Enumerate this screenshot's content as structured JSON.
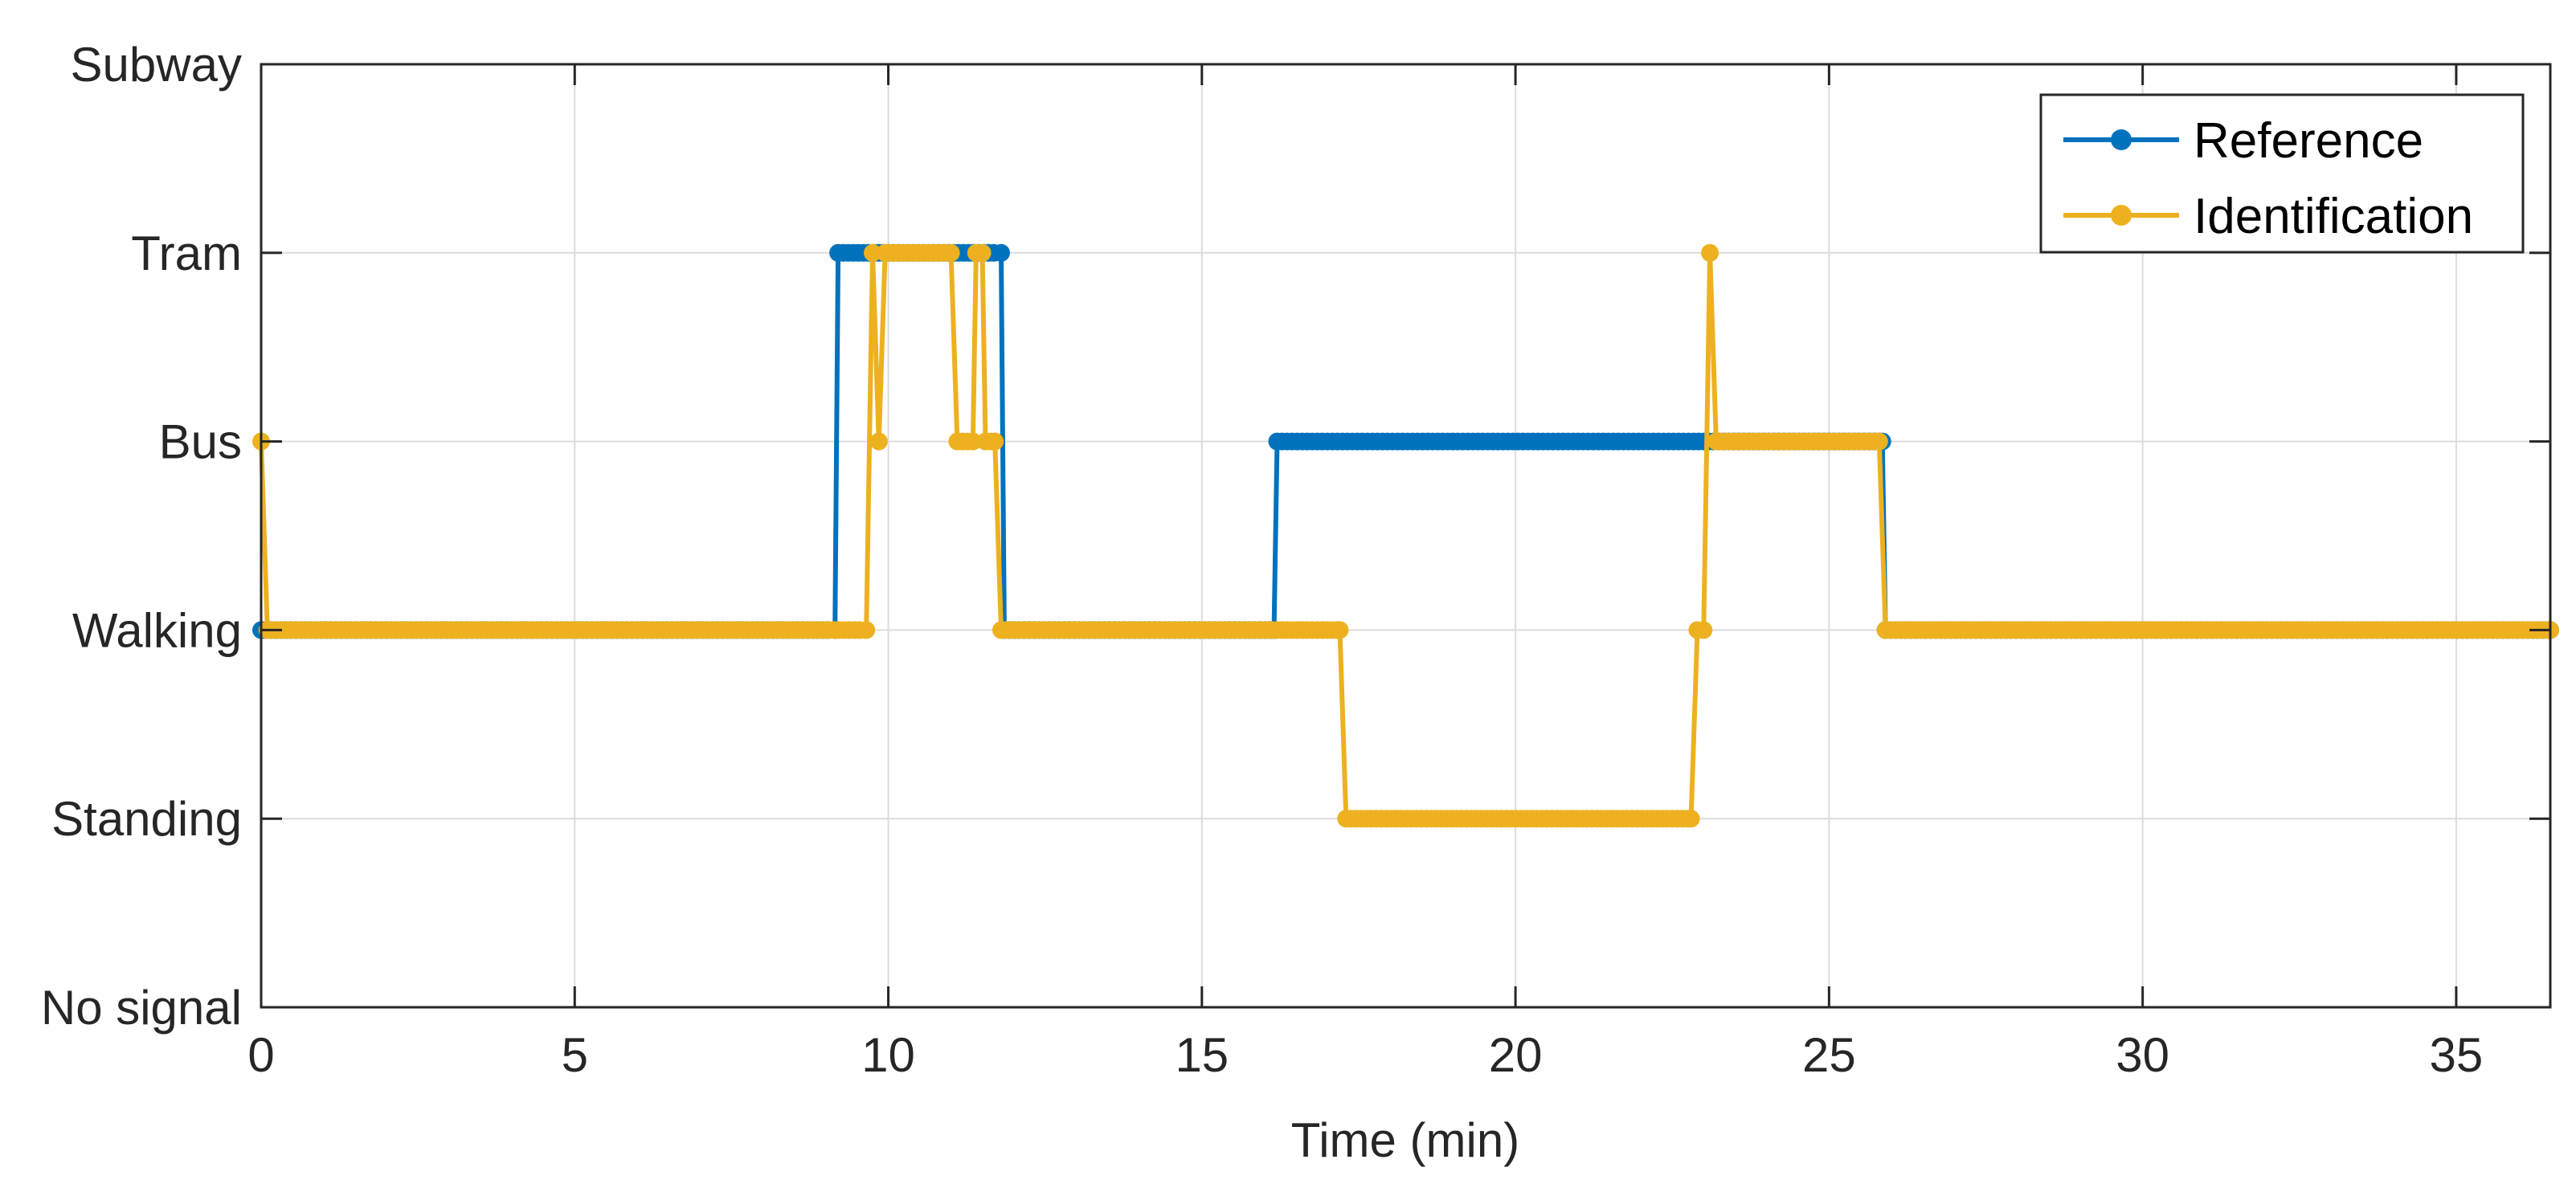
{
  "chart_data": {
    "type": "line",
    "title": "",
    "xlabel": "Time (min)",
    "ylabel": "",
    "xlim": [
      0,
      36.5
    ],
    "ylim": [
      0,
      5
    ],
    "x_ticks": [
      0,
      5,
      10,
      15,
      20,
      25,
      30,
      35
    ],
    "y_ticks": [
      {
        "value": 0,
        "label": "No signal"
      },
      {
        "value": 1,
        "label": "Standing"
      },
      {
        "value": 2,
        "label": "Walking"
      },
      {
        "value": 3,
        "label": "Bus"
      },
      {
        "value": 4,
        "label": "Tram"
      },
      {
        "value": 5,
        "label": "Subway"
      }
    ],
    "grid": true,
    "legend_position": "top-right",
    "series": [
      {
        "name": "Reference",
        "color": "#0072BD",
        "points": [
          [
            0,
            2
          ],
          [
            9.15,
            2
          ],
          [
            9.2,
            4
          ],
          [
            11.8,
            4
          ],
          [
            11.85,
            2
          ],
          [
            16.15,
            2
          ],
          [
            16.2,
            3
          ],
          [
            25.85,
            3
          ],
          [
            25.9,
            2
          ],
          [
            36.5,
            2
          ]
        ]
      },
      {
        "name": "Identification",
        "color": "#EDB120",
        "points": [
          [
            0,
            3
          ],
          [
            0.1,
            2
          ],
          [
            9.65,
            2
          ],
          [
            9.75,
            4
          ],
          [
            9.85,
            3
          ],
          [
            9.95,
            4
          ],
          [
            11.0,
            4
          ],
          [
            11.1,
            3
          ],
          [
            11.35,
            3
          ],
          [
            11.4,
            4
          ],
          [
            11.5,
            4
          ],
          [
            11.55,
            3
          ],
          [
            11.7,
            3
          ],
          [
            11.8,
            2
          ],
          [
            17.2,
            2
          ],
          [
            17.3,
            1
          ],
          [
            22.8,
            1
          ],
          [
            22.9,
            2
          ],
          [
            23.0,
            2
          ],
          [
            23.1,
            4
          ],
          [
            23.2,
            3
          ],
          [
            25.8,
            3
          ],
          [
            25.9,
            2
          ],
          [
            36.5,
            2
          ]
        ]
      }
    ]
  }
}
